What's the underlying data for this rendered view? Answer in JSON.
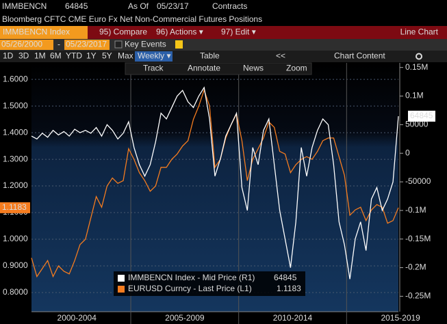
{
  "ui": {
    "ticker": "IMMBENCN",
    "as_of_label": "As Of",
    "as_of": "05/23/17",
    "units": "Contracts",
    "description": "Bloomberg CFTC CME Euro Fx Net Non-Commercial Futures Positions",
    "security": "IMMBENCN Index",
    "menu": [
      "95) Compare",
      "96) Actions ▾",
      "97) Edit ▾"
    ],
    "chart_kind": "Line Chart",
    "start_date": "05/26/2000",
    "date_sep": "-",
    "end_date": "05/23/2017",
    "key_events": "Key Events",
    "periods": [
      "1D",
      "3D",
      "1M",
      "6M",
      "YTD",
      "1Y",
      "5Y",
      "Max"
    ],
    "frequency": "Weekly ▾",
    "table": "Table",
    "collapse": "<<",
    "chart_content": "Chart Content",
    "tools": [
      "Track",
      "Annotate",
      "News",
      "Zoom"
    ]
  },
  "chart_data": {
    "type": "line",
    "x": [
      2000.4,
      2000.65,
      2000.9,
      2001.15,
      2001.4,
      2001.65,
      2001.9,
      2002.15,
      2002.4,
      2002.65,
      2002.9,
      2003.15,
      2003.4,
      2003.65,
      2003.9,
      2004.15,
      2004.4,
      2004.65,
      2004.9,
      2005.15,
      2005.4,
      2005.65,
      2005.9,
      2006.15,
      2006.4,
      2006.65,
      2006.9,
      2007.15,
      2007.4,
      2007.65,
      2007.9,
      2008.15,
      2008.4,
      2008.65,
      2008.9,
      2009.15,
      2009.4,
      2009.65,
      2009.9,
      2010.15,
      2010.4,
      2010.65,
      2010.9,
      2011.15,
      2011.4,
      2011.65,
      2011.9,
      2012.15,
      2012.4,
      2012.65,
      2012.9,
      2013.15,
      2013.4,
      2013.65,
      2013.9,
      2014.15,
      2014.4,
      2014.65,
      2014.9,
      2015.15,
      2015.4,
      2015.65,
      2015.9,
      2016.15,
      2016.4,
      2016.65,
      2016.9,
      2017.15,
      2017.4
    ],
    "series": [
      {
        "name": "IMMBENCN Index - Mid Price (R1)",
        "color": "#ffffff",
        "axis": "y2",
        "values": [
          30000,
          25000,
          35000,
          28000,
          40000,
          32000,
          38000,
          30000,
          42000,
          36000,
          40000,
          35000,
          45000,
          30000,
          50000,
          40000,
          25000,
          35000,
          55000,
          10000,
          -20000,
          -40000,
          -20000,
          20000,
          70000,
          60000,
          80000,
          100000,
          110000,
          90000,
          80000,
          100000,
          115000,
          60000,
          -40000,
          -10000,
          30000,
          50000,
          70000,
          -60000,
          -100000,
          10000,
          -20000,
          40000,
          60000,
          -20000,
          -100000,
          -150000,
          -200000,
          -120000,
          10000,
          -40000,
          10000,
          40000,
          60000,
          50000,
          -20000,
          -120000,
          -160000,
          -220000,
          -150000,
          -120000,
          -170000,
          -80000,
          -60000,
          -100000,
          -80000,
          -50000,
          64845
        ]
      },
      {
        "name": "EURUSD Curncy - Last Price (L1)",
        "color": "#f57c1f",
        "axis": "y",
        "values": [
          0.93,
          0.86,
          0.89,
          0.92,
          0.86,
          0.9,
          0.88,
          0.87,
          0.92,
          0.98,
          1.0,
          1.08,
          1.16,
          1.12,
          1.2,
          1.23,
          1.21,
          1.22,
          1.34,
          1.3,
          1.25,
          1.22,
          1.18,
          1.2,
          1.27,
          1.27,
          1.3,
          1.32,
          1.35,
          1.37,
          1.45,
          1.5,
          1.56,
          1.5,
          1.27,
          1.3,
          1.38,
          1.43,
          1.47,
          1.37,
          1.22,
          1.3,
          1.34,
          1.38,
          1.44,
          1.42,
          1.33,
          1.32,
          1.25,
          1.28,
          1.3,
          1.31,
          1.3,
          1.33,
          1.37,
          1.38,
          1.38,
          1.31,
          1.24,
          1.09,
          1.11,
          1.12,
          1.07,
          1.11,
          1.13,
          1.12,
          1.06,
          1.07,
          1.1183
        ]
      }
    ],
    "xlim": [
      2000.4,
      2017.4
    ],
    "xticks": [
      {
        "value": 2002.5,
        "label": "2000-2004"
      },
      {
        "value": 2007.5,
        "label": "2005-2009"
      },
      {
        "value": 2012.5,
        "label": "2010-2014"
      },
      {
        "value": 2017.5,
        "label": "2015-2019"
      }
    ],
    "ylim": [
      0.728,
      1.662
    ],
    "yticks": [
      {
        "value": 0.8,
        "label": "0.8000"
      },
      {
        "value": 0.9,
        "label": "0.9000"
      },
      {
        "value": 1.0,
        "label": "1.0000"
      },
      {
        "value": 1.1,
        "label": "1.1000"
      },
      {
        "value": 1.2,
        "label": "1.2000"
      },
      {
        "value": 1.3,
        "label": "1.3000"
      },
      {
        "value": 1.4,
        "label": "1.4000"
      },
      {
        "value": 1.5,
        "label": "1.5000"
      },
      {
        "value": 1.6,
        "label": "1.6000"
      }
    ],
    "y2lim": [
      -277000,
      158000
    ],
    "y2ticks": [
      {
        "value": -250000,
        "label": "-0.25M"
      },
      {
        "value": -200000,
        "label": "-0.2M"
      },
      {
        "value": -150000,
        "label": "-0.15M"
      },
      {
        "value": -100000,
        "label": "-0.1M"
      },
      -50000,
      0,
      50000,
      {
        "value": 100000,
        "label": "0.1M"
      },
      {
        "value": 150000,
        "label": "0.15M"
      }
    ],
    "grid": true
  }
}
